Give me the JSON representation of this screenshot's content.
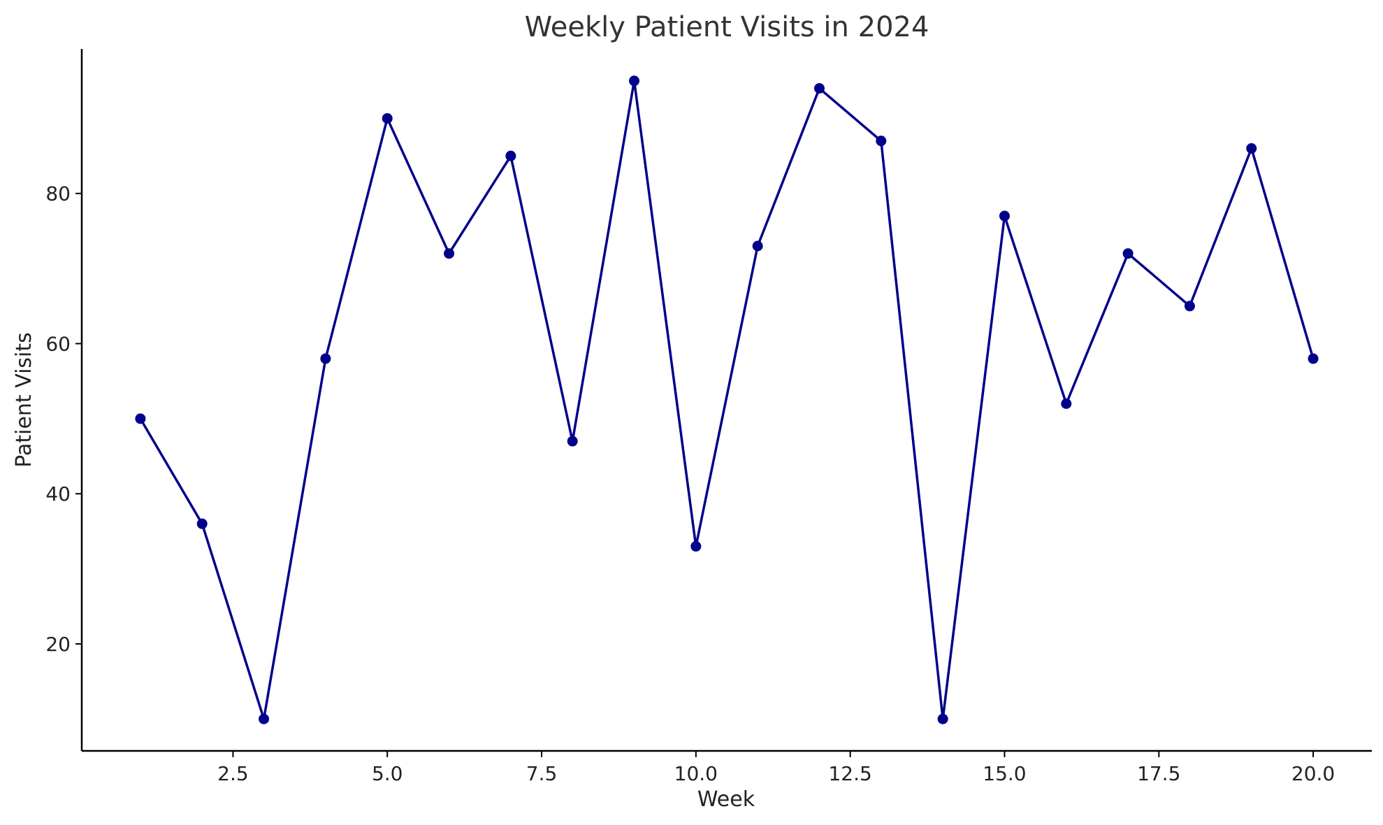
{
  "chart_data": {
    "type": "line",
    "title": "Weekly Patient Visits in 2024",
    "xlabel": "Week",
    "ylabel": "Patient Visits",
    "x": [
      1,
      2,
      3,
      4,
      5,
      6,
      7,
      8,
      9,
      10,
      11,
      12,
      13,
      14,
      15,
      16,
      17,
      18,
      19,
      20
    ],
    "series": [
      {
        "values": [
          50,
          36,
          10,
          58,
          90,
          72,
          85,
          47,
          95,
          33,
          73,
          94,
          87,
          10,
          77,
          52,
          72,
          65,
          86,
          58
        ],
        "color": "#00008b",
        "marker": "circle"
      }
    ],
    "xlim": [
      0.05,
      20.95
    ],
    "ylim": [
      5.75,
      99.25
    ],
    "xticks": [
      2.5,
      5.0,
      7.5,
      10.0,
      12.5,
      15.0,
      17.5,
      20.0
    ],
    "xtick_labels": [
      "2.5",
      "5.0",
      "7.5",
      "10.0",
      "12.5",
      "15.0",
      "17.5",
      "20.0"
    ],
    "yticks": [
      20,
      40,
      60,
      80
    ],
    "ytick_labels": [
      "20",
      "40",
      "60",
      "80"
    ],
    "grid": false,
    "legend": "none"
  }
}
